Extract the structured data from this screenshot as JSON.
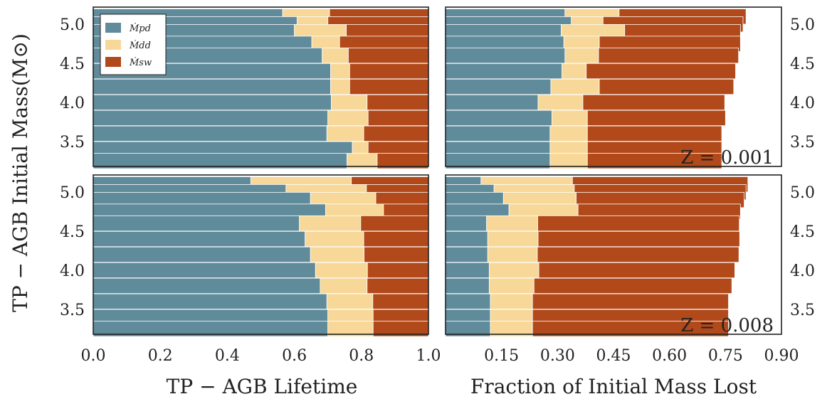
{
  "colors": {
    "Mpd": "#5f8b9b",
    "Mdd": "#f7d899",
    "Msw": "#b1491a",
    "bar_edge": "#ffffff",
    "frame": "#222222"
  },
  "figure": {
    "ylabel": "TP − AGB Initial Mass(M⊙)",
    "xlabel_left": "TP − AGB Lifetime",
    "xlabel_right": "Fraction of Initial Mass Lost",
    "legend": [
      "Ṁpd",
      "Ṁdd",
      "Ṁsw"
    ],
    "legend_placement": "top-left",
    "annotations": [
      "Z = 0.001",
      "Z = 0.008"
    ]
  },
  "chart_data": [
    {
      "type": "bar",
      "orientation": "horizontal",
      "stacked": true,
      "panel": "top-left",
      "annotation": "",
      "categories": [
        5.1,
        5.0,
        4.9,
        4.75,
        4.6,
        4.4,
        4.2,
        4.0,
        3.8,
        3.6,
        3.4,
        3.25
      ],
      "y_ticks": [
        "5.0",
        "4.5",
        "4.0",
        "3.5"
      ],
      "xlim": [
        0,
        1
      ],
      "x_ticks": [],
      "series": [
        {
          "name": "Ṁpd",
          "values": [
            0.565,
            0.608,
            0.6,
            0.652,
            0.683,
            0.708,
            0.708,
            0.71,
            0.7,
            0.697,
            0.773,
            0.757
          ]
        },
        {
          "name": "Ṁdd",
          "values": [
            0.14,
            0.092,
            0.155,
            0.083,
            0.078,
            0.057,
            0.057,
            0.107,
            0.12,
            0.11,
            0.047,
            0.09
          ]
        },
        {
          "name": "Ṁsw",
          "values": [
            0.295,
            0.3,
            0.245,
            0.265,
            0.239,
            0.235,
            0.235,
            0.183,
            0.18,
            0.193,
            0.18,
            0.153
          ]
        }
      ]
    },
    {
      "type": "bar",
      "orientation": "horizontal",
      "stacked": true,
      "panel": "top-right",
      "annotation": "Z = 0.001",
      "categories": [
        5.1,
        5.0,
        4.9,
        4.75,
        4.6,
        4.4,
        4.2,
        4.0,
        3.8,
        3.6,
        3.4,
        3.25
      ],
      "y_ticks": [
        "5.0",
        "4.5",
        "4.0",
        "3.5"
      ],
      "xlim": [
        0,
        0.9
      ],
      "x_ticks": [],
      "series": [
        {
          "name": "Ṁpd",
          "values": [
            0.32,
            0.337,
            0.31,
            0.317,
            0.32,
            0.312,
            0.282,
            0.248,
            0.285,
            0.28,
            0.28,
            0.28
          ]
        },
        {
          "name": "Ṁdd",
          "values": [
            0.145,
            0.085,
            0.17,
            0.095,
            0.09,
            0.065,
            0.13,
            0.12,
            0.095,
            0.1,
            0.1,
            0.1
          ]
        },
        {
          "name": "Ṁsw",
          "values": [
            0.34,
            0.375,
            0.31,
            0.378,
            0.375,
            0.4,
            0.36,
            0.38,
            0.37,
            0.36,
            0.36,
            0.36
          ]
        }
      ]
    },
    {
      "type": "bar",
      "orientation": "horizontal",
      "stacked": true,
      "panel": "bottom-left",
      "annotation": "",
      "categories": [
        5.1,
        5.0,
        4.9,
        4.75,
        4.6,
        4.4,
        4.2,
        4.0,
        3.8,
        3.6,
        3.4,
        3.25
      ],
      "y_ticks": [
        "5.0",
        "4.5",
        "4.0",
        "3.5"
      ],
      "xlim": [
        0,
        1
      ],
      "x_ticks": [
        "0.0",
        "0.2",
        "0.4",
        "0.6",
        "0.8",
        "1.0"
      ],
      "series": [
        {
          "name": "Ṁpd",
          "values": [
            0.47,
            0.575,
            0.648,
            0.693,
            0.615,
            0.632,
            0.648,
            0.663,
            0.677,
            0.697,
            0.7,
            0.7
          ]
        },
        {
          "name": "Ṁdd",
          "values": [
            0.3,
            0.24,
            0.195,
            0.173,
            0.183,
            0.175,
            0.16,
            0.155,
            0.14,
            0.137,
            0.135,
            0.135
          ]
        },
        {
          "name": "Ṁsw",
          "values": [
            0.23,
            0.185,
            0.157,
            0.134,
            0.202,
            0.193,
            0.192,
            0.182,
            0.183,
            0.166,
            0.165,
            0.165
          ]
        }
      ]
    },
    {
      "type": "bar",
      "orientation": "horizontal",
      "stacked": true,
      "panel": "bottom-right",
      "annotation": "Z = 0.008",
      "categories": [
        5.1,
        5.0,
        4.9,
        4.75,
        4.6,
        4.4,
        4.2,
        4.0,
        3.8,
        3.6,
        3.4,
        3.25
      ],
      "y_ticks": [
        "5.0",
        "4.5",
        "4.0",
        "3.5"
      ],
      "xlim": [
        0,
        0.9
      ],
      "x_ticks": [
        "0.15",
        "0.30",
        "0.45",
        "0.60",
        "0.75",
        "0.90"
      ],
      "series": [
        {
          "name": "Ṁpd",
          "values": [
            0.095,
            0.13,
            0.155,
            0.17,
            0.11,
            0.113,
            0.113,
            0.117,
            0.117,
            0.12,
            0.12,
            0.12
          ]
        },
        {
          "name": "Ṁdd",
          "values": [
            0.245,
            0.215,
            0.195,
            0.185,
            0.137,
            0.135,
            0.133,
            0.133,
            0.12,
            0.113,
            0.113,
            0.113
          ]
        },
        {
          "name": "Ṁsw",
          "values": [
            0.47,
            0.46,
            0.45,
            0.435,
            0.54,
            0.54,
            0.54,
            0.525,
            0.53,
            0.525,
            0.525,
            0.525
          ]
        }
      ]
    }
  ]
}
